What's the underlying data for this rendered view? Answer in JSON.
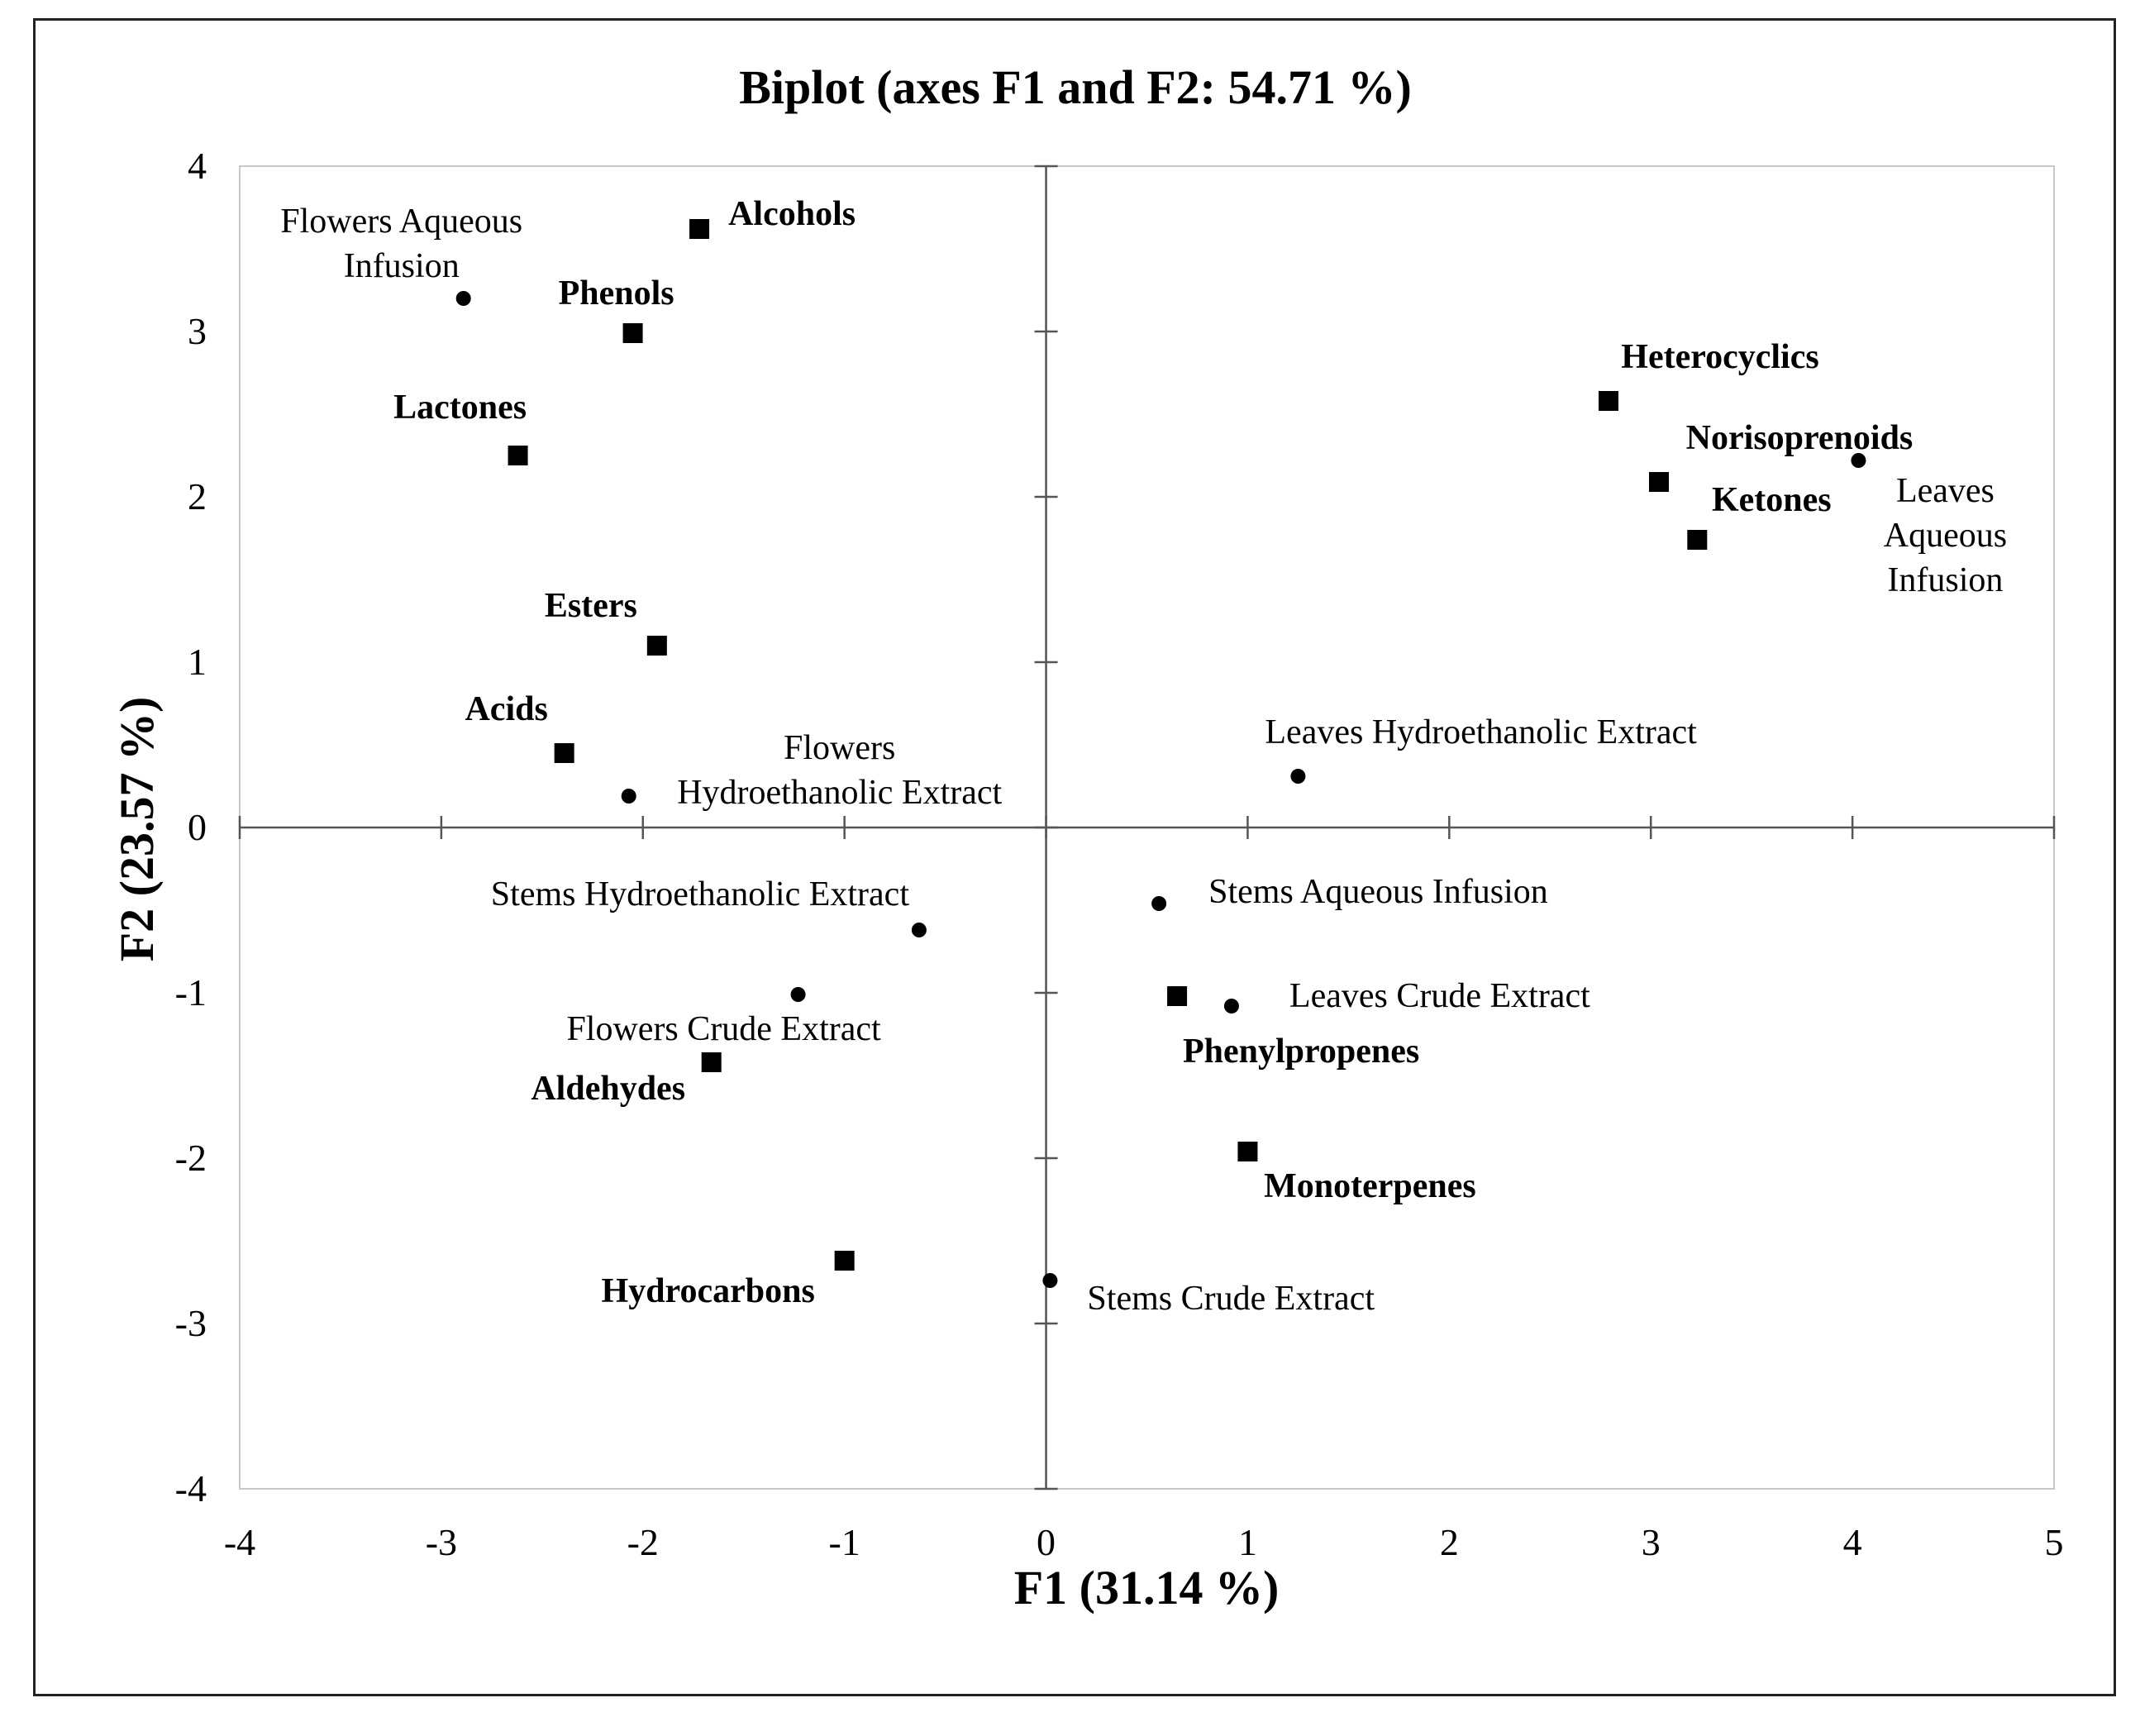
{
  "chart_data": {
    "type": "scatter",
    "title": "Biplot (axes F1 and F2: 54.71 %)",
    "xlabel": "F1 (31.14 %)",
    "ylabel": "F2 (23.57 %)",
    "xlim": [
      -4,
      5
    ],
    "ylim": [
      -4,
      4
    ],
    "xticks": [
      "-4",
      "-3",
      "-2",
      "-1",
      "0",
      "1",
      "2",
      "3",
      "4",
      "5"
    ],
    "yticks": [
      "-4",
      "-3",
      "-2",
      "-1",
      "0",
      "1",
      "2",
      "3",
      "4"
    ],
    "grid": false,
    "series": [
      {
        "marker": "square",
        "points": [
          {
            "label": "Alcohols",
            "x": -1.72,
            "y": 3.62
          },
          {
            "label": "Phenols",
            "x": -2.05,
            "y": 2.99
          },
          {
            "label": "Lactones",
            "x": -2.62,
            "y": 2.25
          },
          {
            "label": "Esters",
            "x": -1.93,
            "y": 1.1
          },
          {
            "label": "Acids",
            "x": -2.39,
            "y": 0.45
          },
          {
            "label": "Aldehydes",
            "x": -1.66,
            "y": -1.42
          },
          {
            "label": "Hydrocarbons",
            "x": -1.0,
            "y": -2.62
          },
          {
            "label": "Heterocyclics",
            "x": 2.79,
            "y": 2.58
          },
          {
            "label": "Norisoprenoids",
            "x": 3.04,
            "y": 2.09
          },
          {
            "label": "Ketones",
            "x": 3.23,
            "y": 1.74
          },
          {
            "label": "Phenylpropenes",
            "x": 0.65,
            "y": -1.02
          },
          {
            "label": "Monoterpenes",
            "x": 1.0,
            "y": -1.96
          }
        ]
      },
      {
        "marker": "circle",
        "points": [
          {
            "label": [
              "Flowers Aqueous",
              "Infusion"
            ],
            "x": -2.89,
            "y": 3.2
          },
          {
            "label": [
              "Flowers",
              "Hydroethanolic Extract"
            ],
            "x": -2.07,
            "y": 0.19
          },
          {
            "label": [
              "Stems Hydroethanolic Extract"
            ],
            "x": -0.63,
            "y": -0.62
          },
          {
            "label": [
              "Flowers Crude Extract"
            ],
            "x": -1.23,
            "y": -1.01
          },
          {
            "label": [
              "Leaves",
              "Aqueous",
              "Infusion"
            ],
            "x": 4.03,
            "y": 2.22
          },
          {
            "label": [
              "Leaves Hydroethanolic Extract"
            ],
            "x": 1.25,
            "y": 0.31
          },
          {
            "label": [
              "Stems Aqueous Infusion"
            ],
            "x": 0.56,
            "y": -0.46
          },
          {
            "label": [
              "Leaves Crude Extract"
            ],
            "x": 0.92,
            "y": -1.08
          },
          {
            "label": [
              "Stems Crude Extract"
            ],
            "x": 0.02,
            "y": -2.74
          }
        ]
      }
    ]
  }
}
